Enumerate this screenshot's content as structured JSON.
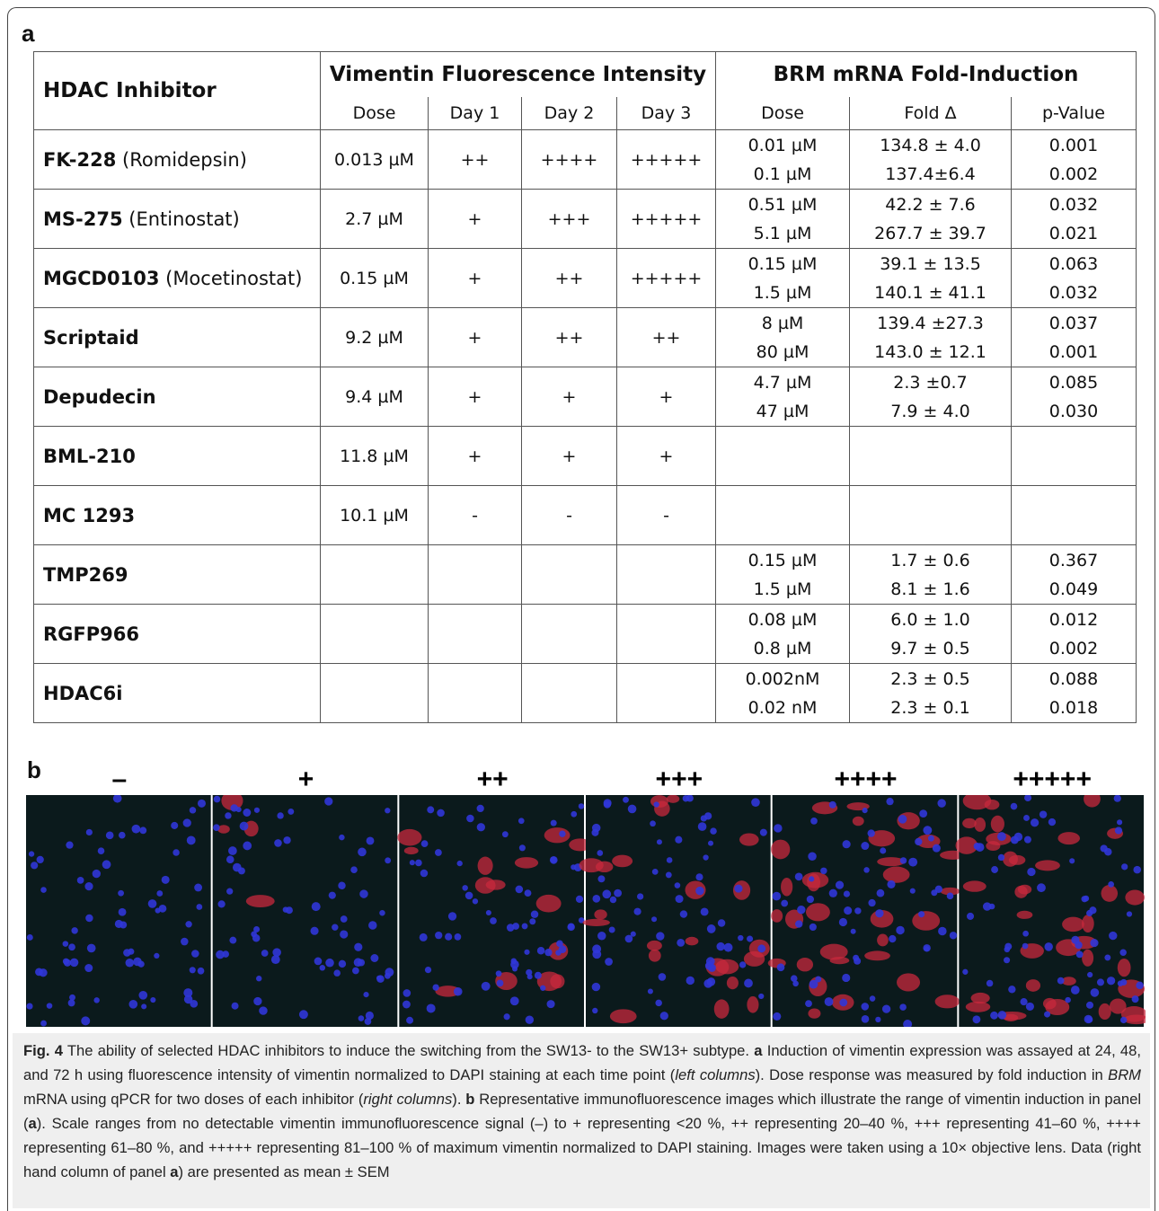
{
  "panel_a_label": "a",
  "table": {
    "header_inhibitor": "HDAC Inhibitor",
    "header_vimentin": "Vimentin Fluorescence Intensity",
    "header_brm": "BRM mRNA Fold-Induction",
    "subheaders": [
      "Dose",
      "Day 1",
      "Day 2",
      "Day 3",
      "Dose",
      "Fold Δ",
      "p-Value"
    ],
    "rows": [
      {
        "name": "FK-228",
        "alias": "(Romidepsin)",
        "vimentin": [
          "0.013 µM",
          "++",
          "++++",
          "+++++"
        ],
        "brm": [
          [
            "0.01 µM",
            "134.8 ± 4.0",
            "0.001"
          ],
          [
            "0.1 µM",
            "137.4±6.4",
            "0.002"
          ]
        ]
      },
      {
        "name": "MS-275",
        "alias": "(Entinostat)",
        "vimentin": [
          "2.7 µM",
          "+",
          "+++",
          "+++++"
        ],
        "brm": [
          [
            "0.51 µM",
            "42.2 ± 7.6",
            "0.032"
          ],
          [
            "5.1 µM",
            "267.7 ± 39.7",
            "0.021"
          ]
        ]
      },
      {
        "name": "MGCD0103",
        "alias": "(Mocetinostat)",
        "vimentin": [
          "0.15 µM",
          "+",
          "++",
          "+++++"
        ],
        "brm": [
          [
            "0.15 µM",
            "39.1 ± 13.5",
            "0.063"
          ],
          [
            "1.5 µM",
            "140.1 ± 41.1",
            "0.032"
          ]
        ]
      },
      {
        "name": "Scriptaid",
        "vimentin": [
          "9.2 µM",
          "+",
          "++",
          "++"
        ],
        "brm": [
          [
            "8 µM",
            "139.4 ±27.3",
            "0.037"
          ],
          [
            "80 µM",
            "143.0 ± 12.1",
            "0.001"
          ]
        ]
      },
      {
        "name": "Depudecin",
        "vimentin": [
          "9.4 µM",
          "+",
          "+",
          "+"
        ],
        "brm": [
          [
            "4.7 µM",
            "2.3 ±0.7",
            "0.085"
          ],
          [
            "47 µM",
            "7.9 ± 4.0",
            "0.030"
          ]
        ]
      },
      {
        "name": "BML-210",
        "vimentin": [
          "11.8 µM",
          "+",
          "+",
          "+"
        ]
      },
      {
        "name": "MC 1293",
        "vimentin": [
          "10.1 µM",
          "-",
          "-",
          "-"
        ]
      },
      {
        "name": "TMP269",
        "brm": [
          [
            "0.15 µM",
            "1.7 ± 0.6",
            "0.367"
          ],
          [
            "1.5 µM",
            "8.1 ± 1.6",
            "0.049"
          ]
        ]
      },
      {
        "name": "RGFP966",
        "brm": [
          [
            "0.08 µM",
            "6.0 ± 1.0",
            "0.012"
          ],
          [
            "0.8 µM",
            "9.7 ± 0.5",
            "0.002"
          ]
        ]
      },
      {
        "name": "HDAC6i",
        "brm": [
          [
            "0.002nM",
            "2.3 ± 0.5",
            "0.088"
          ],
          [
            "0.02 nM",
            "2.3 ± 0.1",
            "0.018"
          ]
        ]
      }
    ]
  },
  "panel_b_label": "b",
  "image_labels": [
    "–",
    "+",
    "++",
    "+++",
    "++++",
    "+++++"
  ],
  "caption": [
    "Fig. 4",
    " The ability of selected HDAC inhibitors to induce the switching from the SW13- to the SW13+ subtype. ",
    "a",
    " Induction of vimentin expression was assayed at 24, 48, and 72 h using fluorescence intensity of vimentin normalized to DAPI staining at each time point (",
    "left columns",
    "). Dose response was measured by fold induction in ",
    "BRM",
    " mRNA using qPCR for two doses of each inhibitor (",
    "right columns",
    "). ",
    "b",
    " Representative immunofluorescence images which illustrate the range of vimentin induction in panel (",
    "a",
    "). Scale ranges from no detectable vimentin immunofluorescence signal (–) to + representing <20 %, ++ representing 20–40 %, +++ representing 41–60 %, ++++ representing 61–80 %, and +++++ representing 81–100 % of maximum vimentin normalized to DAPI staining. Images were taken using a 10× objective lens. Data (right hand column of panel ",
    "a",
    ") are presented as mean ± SEM"
  ]
}
